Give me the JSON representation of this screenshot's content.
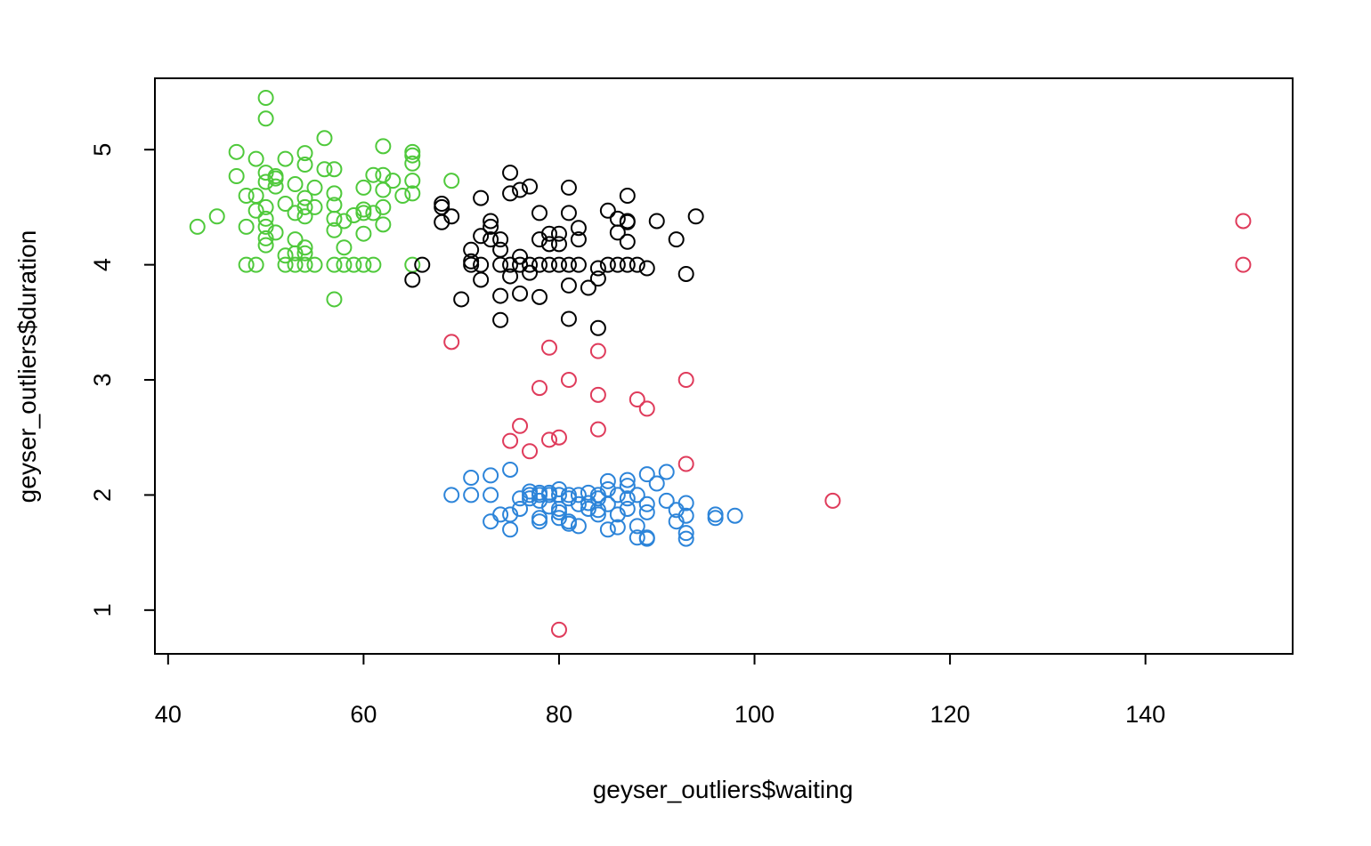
{
  "chart_data": {
    "type": "scatter",
    "xlabel": "geyser_outliers$waiting",
    "ylabel": "geyser_outliers$duration",
    "xlim": [
      38.65,
      155.06
    ],
    "ylim": [
      0.62,
      5.62
    ],
    "xticks": [
      40,
      60,
      80,
      100,
      120,
      140
    ],
    "yticks": [
      1,
      2,
      3,
      4,
      5
    ],
    "grid": false,
    "legend": "none",
    "series": [
      {
        "color": "#4fc93b",
        "points": [
          [
            50,
            5.45
          ],
          [
            50,
            5.27
          ],
          [
            56,
            5.1
          ],
          [
            62,
            5.03
          ],
          [
            47,
            4.98
          ],
          [
            54,
            4.97
          ],
          [
            65,
            4.98
          ],
          [
            65,
            4.95
          ],
          [
            52,
            4.92
          ],
          [
            49,
            4.92
          ],
          [
            54,
            4.87
          ],
          [
            65,
            4.88
          ],
          [
            57,
            4.83
          ],
          [
            56,
            4.83
          ],
          [
            50,
            4.8
          ],
          [
            61,
            4.78
          ],
          [
            47,
            4.77
          ],
          [
            51,
            4.77
          ],
          [
            51,
            4.75
          ],
          [
            62,
            4.78
          ],
          [
            65,
            4.73
          ],
          [
            50,
            4.72
          ],
          [
            53,
            4.7
          ],
          [
            63,
            4.73
          ],
          [
            51,
            4.68
          ],
          [
            55,
            4.67
          ],
          [
            60,
            4.67
          ],
          [
            62,
            4.65
          ],
          [
            65,
            4.62
          ],
          [
            57,
            4.62
          ],
          [
            48,
            4.6
          ],
          [
            49,
            4.6
          ],
          [
            64,
            4.6
          ],
          [
            54,
            4.58
          ],
          [
            52,
            4.53
          ],
          [
            50,
            4.5
          ],
          [
            54,
            4.5
          ],
          [
            55,
            4.5
          ],
          [
            57,
            4.52
          ],
          [
            62,
            4.5
          ],
          [
            49,
            4.47
          ],
          [
            60,
            4.48
          ],
          [
            60,
            4.45
          ],
          [
            53,
            4.45
          ],
          [
            61,
            4.45
          ],
          [
            59,
            4.43
          ],
          [
            54,
            4.42
          ],
          [
            50,
            4.4
          ],
          [
            57,
            4.4
          ],
          [
            58,
            4.38
          ],
          [
            45,
            4.42
          ],
          [
            43,
            4.33
          ],
          [
            48,
            4.33
          ],
          [
            50,
            4.33
          ],
          [
            62,
            4.35
          ],
          [
            57,
            4.3
          ],
          [
            51,
            4.28
          ],
          [
            60,
            4.27
          ],
          [
            50,
            4.23
          ],
          [
            53,
            4.22
          ],
          [
            50,
            4.17
          ],
          [
            54,
            4.15
          ],
          [
            58,
            4.15
          ],
          [
            54,
            4.1
          ],
          [
            53,
            4.1
          ],
          [
            52,
            4.08
          ],
          [
            48,
            4.0
          ],
          [
            49,
            4.0
          ],
          [
            52,
            4.0
          ],
          [
            53,
            4.0
          ],
          [
            54,
            4.0
          ],
          [
            55,
            4.0
          ],
          [
            57,
            4.0
          ],
          [
            58,
            4.0
          ],
          [
            59,
            4.0
          ],
          [
            60,
            4.0
          ],
          [
            61,
            4.0
          ],
          [
            65,
            4.0
          ],
          [
            57,
            3.7
          ],
          [
            69,
            4.73
          ]
        ]
      },
      {
        "color": "#000000",
        "points": [
          [
            75,
            4.8
          ],
          [
            77,
            4.68
          ],
          [
            76,
            4.65
          ],
          [
            81,
            4.67
          ],
          [
            75,
            4.62
          ],
          [
            72,
            4.58
          ],
          [
            87,
            4.6
          ],
          [
            68,
            4.53
          ],
          [
            68,
            4.5
          ],
          [
            85,
            4.47
          ],
          [
            78,
            4.45
          ],
          [
            81,
            4.45
          ],
          [
            94,
            4.42
          ],
          [
            69,
            4.42
          ],
          [
            86,
            4.4
          ],
          [
            73,
            4.38
          ],
          [
            87,
            4.38
          ],
          [
            87,
            4.37
          ],
          [
            90,
            4.38
          ],
          [
            68,
            4.37
          ],
          [
            73,
            4.33
          ],
          [
            82,
            4.32
          ],
          [
            86,
            4.28
          ],
          [
            79,
            4.27
          ],
          [
            80,
            4.27
          ],
          [
            72,
            4.25
          ],
          [
            73,
            4.22
          ],
          [
            74,
            4.22
          ],
          [
            78,
            4.22
          ],
          [
            82,
            4.22
          ],
          [
            87,
            4.2
          ],
          [
            92,
            4.22
          ],
          [
            79,
            4.18
          ],
          [
            80,
            4.18
          ],
          [
            74,
            4.13
          ],
          [
            71,
            4.13
          ],
          [
            76,
            4.07
          ],
          [
            71,
            4.03
          ],
          [
            66,
            4.0
          ],
          [
            71,
            4.0
          ],
          [
            72,
            4.0
          ],
          [
            74,
            4.0
          ],
          [
            75,
            4.0
          ],
          [
            76,
            4.0
          ],
          [
            77,
            4.0
          ],
          [
            78,
            4.0
          ],
          [
            79,
            4.0
          ],
          [
            80,
            4.0
          ],
          [
            81,
            4.0
          ],
          [
            82,
            4.0
          ],
          [
            85,
            4.0
          ],
          [
            86,
            4.0
          ],
          [
            87,
            4.0
          ],
          [
            88,
            4.0
          ],
          [
            84,
            3.97
          ],
          [
            89,
            3.97
          ],
          [
            77,
            3.93
          ],
          [
            75,
            3.9
          ],
          [
            93,
            3.92
          ],
          [
            84,
            3.88
          ],
          [
            65,
            3.87
          ],
          [
            72,
            3.87
          ],
          [
            81,
            3.82
          ],
          [
            83,
            3.8
          ],
          [
            76,
            3.75
          ],
          [
            74,
            3.73
          ],
          [
            78,
            3.72
          ],
          [
            70,
            3.7
          ],
          [
            81,
            3.53
          ],
          [
            74,
            3.52
          ],
          [
            84,
            3.45
          ]
        ]
      },
      {
        "color": "#df3b5b",
        "points": [
          [
            150,
            4.38
          ],
          [
            150,
            4.0
          ],
          [
            69,
            3.33
          ],
          [
            79,
            3.28
          ],
          [
            84,
            3.25
          ],
          [
            81,
            3.0
          ],
          [
            93,
            3.0
          ],
          [
            78,
            2.93
          ],
          [
            84,
            2.87
          ],
          [
            88,
            2.83
          ],
          [
            89,
            2.75
          ],
          [
            76,
            2.6
          ],
          [
            84,
            2.57
          ],
          [
            80,
            2.5
          ],
          [
            79,
            2.48
          ],
          [
            75,
            2.47
          ],
          [
            77,
            2.38
          ],
          [
            93,
            2.27
          ],
          [
            108,
            1.95
          ],
          [
            80,
            0.83
          ]
        ]
      },
      {
        "color": "#2c84d9",
        "points": [
          [
            75,
            2.22
          ],
          [
            91,
            2.2
          ],
          [
            89,
            2.18
          ],
          [
            73,
            2.17
          ],
          [
            71,
            2.15
          ],
          [
            85,
            2.12
          ],
          [
            87,
            2.13
          ],
          [
            90,
            2.1
          ],
          [
            87,
            2.08
          ],
          [
            85,
            2.05
          ],
          [
            80,
            2.05
          ],
          [
            77,
            2.03
          ],
          [
            78,
            2.02
          ],
          [
            79,
            2.02
          ],
          [
            83,
            2.02
          ],
          [
            69,
            2.0
          ],
          [
            71,
            2.0
          ],
          [
            73,
            2.0
          ],
          [
            77,
            2.0
          ],
          [
            78,
            2.0
          ],
          [
            79,
            2.0
          ],
          [
            80,
            2.0
          ],
          [
            81,
            2.0
          ],
          [
            82,
            2.0
          ],
          [
            84,
            2.0
          ],
          [
            86,
            2.0
          ],
          [
            88,
            2.0
          ],
          [
            76,
            1.97
          ],
          [
            77,
            1.97
          ],
          [
            81,
            1.97
          ],
          [
            84,
            1.97
          ],
          [
            87,
            1.97
          ],
          [
            91,
            1.95
          ],
          [
            78,
            1.95
          ],
          [
            83,
            1.93
          ],
          [
            93,
            1.93
          ],
          [
            82,
            1.92
          ],
          [
            85,
            1.92
          ],
          [
            89,
            1.92
          ],
          [
            79,
            1.9
          ],
          [
            76,
            1.88
          ],
          [
            80,
            1.88
          ],
          [
            83,
            1.88
          ],
          [
            87,
            1.88
          ],
          [
            84,
            1.87
          ],
          [
            92,
            1.87
          ],
          [
            80,
            1.85
          ],
          [
            89,
            1.85
          ],
          [
            86,
            1.83
          ],
          [
            74,
            1.83
          ],
          [
            84,
            1.83
          ],
          [
            96,
            1.83
          ],
          [
            98,
            1.82
          ],
          [
            93,
            1.82
          ],
          [
            75,
            1.83
          ],
          [
            96,
            1.8
          ],
          [
            80,
            1.8
          ],
          [
            78,
            1.8
          ],
          [
            81,
            1.77
          ],
          [
            73,
            1.77
          ],
          [
            92,
            1.77
          ],
          [
            78,
            1.77
          ],
          [
            81,
            1.75
          ],
          [
            82,
            1.73
          ],
          [
            88,
            1.73
          ],
          [
            85,
            1.7
          ],
          [
            86,
            1.72
          ],
          [
            75,
            1.7
          ],
          [
            93,
            1.67
          ],
          [
            88,
            1.63
          ],
          [
            89,
            1.62
          ],
          [
            89,
            1.63
          ],
          [
            93,
            1.62
          ]
        ]
      }
    ]
  }
}
